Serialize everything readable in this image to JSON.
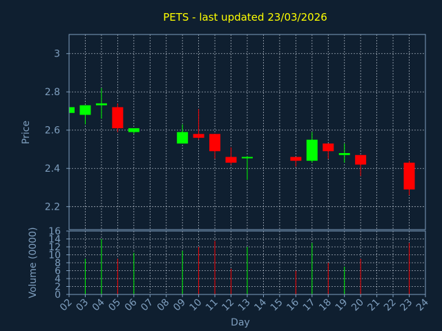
{
  "chart_data": {
    "type": "candlestick",
    "title": "PETS - last updated 23/03/2026",
    "xlabel": "Day",
    "x_ticks": [
      "02",
      "03",
      "04",
      "05",
      "06",
      "07",
      "08",
      "09",
      "10",
      "11",
      "12",
      "13",
      "14",
      "15",
      "16",
      "17",
      "18",
      "19",
      "20",
      "21",
      "22",
      "23",
      "24"
    ],
    "price_panel": {
      "ylabel": "Price",
      "ylim": [
        2.08,
        3.1
      ],
      "y_ticks": [
        "2.2",
        "2.4",
        "2.6",
        "2.8",
        "3"
      ],
      "grid": true
    },
    "volume_panel": {
      "ylabel": "Volume (0000)",
      "ylim": [
        0,
        16
      ],
      "y_ticks": [
        "0",
        "2",
        "4",
        "6",
        "8",
        "10",
        "12",
        "14",
        "16"
      ],
      "grid": true
    },
    "colors": {
      "up": "#00ff00",
      "down": "#ff0000",
      "title": "#ffff00",
      "axis": "#7f9fbf",
      "background": "#0f1f30"
    },
    "candles": [
      {
        "day": "02",
        "open": 2.69,
        "high": 2.73,
        "low": 2.69,
        "close": 2.72,
        "volume": 0
      },
      {
        "day": "03",
        "open": 2.68,
        "high": 2.73,
        "low": 2.63,
        "close": 2.73,
        "volume": 9
      },
      {
        "day": "04",
        "open": 2.73,
        "high": 2.82,
        "low": 2.66,
        "close": 2.74,
        "volume": 14
      },
      {
        "day": "05",
        "open": 2.72,
        "high": 2.74,
        "low": 2.59,
        "close": 2.61,
        "volume": 9
      },
      {
        "day": "06",
        "open": 2.59,
        "high": 2.61,
        "low": 2.58,
        "close": 2.61,
        "volume": 10.5
      },
      {
        "day": "09",
        "open": 2.53,
        "high": 2.63,
        "low": 2.53,
        "close": 2.59,
        "volume": 11
      },
      {
        "day": "10",
        "open": 2.58,
        "high": 2.71,
        "low": 2.55,
        "close": 2.56,
        "volume": 12
      },
      {
        "day": "11",
        "open": 2.58,
        "high": 2.58,
        "low": 2.45,
        "close": 2.49,
        "volume": 13.5
      },
      {
        "day": "12",
        "open": 2.46,
        "high": 2.51,
        "low": 2.42,
        "close": 2.43,
        "volume": 6.5
      },
      {
        "day": "13",
        "open": 2.455,
        "high": 2.465,
        "low": 2.34,
        "close": 2.46,
        "volume": 12
      },
      {
        "day": "16",
        "open": 2.46,
        "high": 2.46,
        "low": 2.41,
        "close": 2.44,
        "volume": 6
      },
      {
        "day": "17",
        "open": 2.44,
        "high": 2.59,
        "low": 2.43,
        "close": 2.55,
        "volume": 13
      },
      {
        "day": "18",
        "open": 2.53,
        "high": 2.53,
        "low": 2.45,
        "close": 2.49,
        "volume": 8
      },
      {
        "day": "19",
        "open": 2.47,
        "high": 2.53,
        "low": 2.43,
        "close": 2.48,
        "volume": 7
      },
      {
        "day": "20",
        "open": 2.47,
        "high": 2.47,
        "low": 2.36,
        "close": 2.42,
        "volume": 9
      },
      {
        "day": "23",
        "open": 2.43,
        "high": 2.44,
        "low": 2.26,
        "close": 2.29,
        "volume": 13
      }
    ]
  }
}
